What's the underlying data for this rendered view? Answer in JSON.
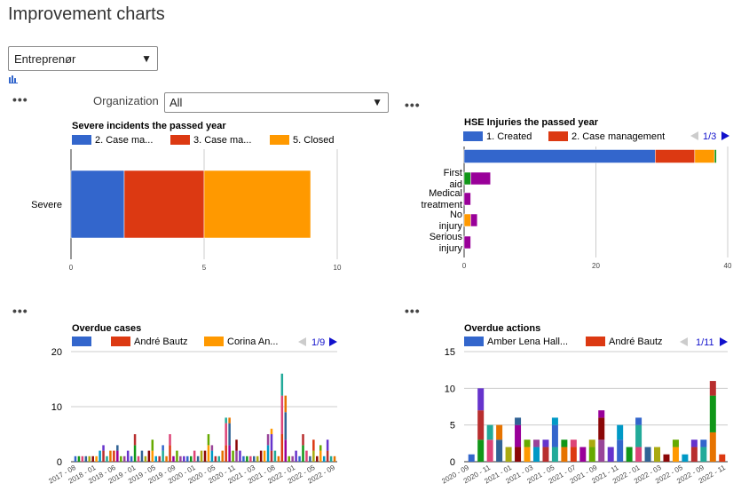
{
  "page": {
    "title": "Improvement charts"
  },
  "company_select": {
    "value": "Entreprenør"
  },
  "org_filter": {
    "label": "Organization",
    "value": "All"
  },
  "colors": {
    "blue": "#3366cc",
    "red": "#dc3912",
    "orange": "#ff9900",
    "green": "#109618",
    "purple": "#990099",
    "teal": "#0099c6",
    "pink": "#dd4477",
    "lime": "#66aa00",
    "darkred": "#b82e2e",
    "navy": "#316395",
    "violet": "#994499",
    "aqua": "#22aa99",
    "olive": "#aaaa11",
    "indigo": "#6633cc",
    "amber": "#e67300",
    "maroon": "#8b0707",
    "grid": "#cccccc",
    "axis": "#333333",
    "nav_arrow": "#1111cc",
    "nav_arrow_disabled": "#cccccc"
  },
  "charts": {
    "severe": {
      "title": "Severe incidents the passed year",
      "legend": [
        "2. Case ma...",
        "3. Case ma...",
        "5. Closed"
      ]
    },
    "hse": {
      "title": "HSE Injuries the passed year",
      "legend": [
        "1. Created",
        "2. Case management"
      ],
      "pager": "1/3"
    },
    "overdue_cases": {
      "title": "Overdue cases",
      "legend": [
        "",
        "André Bautz",
        "Corina An..."
      ],
      "pager": "1/9"
    },
    "overdue_actions": {
      "title": "Overdue actions",
      "legend": [
        "Amber Lena Hall...",
        "André Bautz"
      ],
      "pager": "1/11"
    }
  },
  "chart_data": [
    {
      "type": "bar",
      "orientation": "horizontal",
      "stacked": true,
      "title": "Severe incidents the passed year",
      "categories": [
        "Severe"
      ],
      "series": [
        {
          "name": "2. Case ma...",
          "values": [
            2
          ]
        },
        {
          "name": "3. Case ma...",
          "values": [
            3
          ]
        },
        {
          "name": "5. Closed",
          "values": [
            4
          ]
        }
      ],
      "xlim": [
        0,
        10
      ],
      "xticks": [
        "0",
        "5",
        "10"
      ],
      "legend_position": "top"
    },
    {
      "type": "bar",
      "orientation": "horizontal",
      "stacked": true,
      "title": "HSE Injuries the passed year",
      "categories": [
        "",
        "First aid",
        "Medical treatment",
        "No injury",
        "Serious injury"
      ],
      "series": [
        {
          "name": "1. Created",
          "values": [
            29,
            0,
            0,
            0,
            0
          ]
        },
        {
          "name": "2. Case management",
          "values": [
            6,
            0,
            0,
            0,
            0
          ]
        },
        {
          "values": [
            3,
            0,
            0,
            1,
            0
          ]
        },
        {
          "values": [
            0.3,
            1,
            0,
            0,
            0
          ]
        },
        {
          "values": [
            0,
            3,
            1,
            1,
            1
          ]
        }
      ],
      "xlim": [
        0,
        40
      ],
      "xticks": [
        "0",
        "20",
        "40"
      ],
      "legend_position": "top"
    },
    {
      "type": "bar",
      "stacked": true,
      "title": "Overdue cases",
      "ylim": [
        0,
        20
      ],
      "yticks": [
        "0",
        "10",
        "20"
      ],
      "xticks": [
        "2017 - 08",
        "2018 - 01",
        "2018 - 06",
        "2019 - 01",
        "2019 - 05",
        "2019 - 09",
        "2020 - 01",
        "2020 - 05",
        "2020 - 11",
        "2021 - 03",
        "2021 - 08",
        "2022 - 01",
        "2022 - 05",
        "2022 - 09"
      ],
      "series_legend": [
        "",
        "André Bautz",
        "Corina An..."
      ],
      "totals": [
        1,
        1,
        1,
        1,
        1,
        1,
        1,
        2,
        3,
        1,
        2,
        2,
        3,
        1,
        1,
        2,
        1,
        5,
        1,
        2,
        1,
        2,
        4,
        1,
        1,
        3,
        1,
        5,
        1,
        2,
        1,
        1,
        1,
        1,
        2,
        1,
        2,
        2,
        5,
        3,
        1,
        1,
        2,
        8,
        8,
        2,
        4,
        2,
        1,
        1,
        1,
        1,
        1,
        2,
        2,
        5,
        6,
        2,
        1,
        16,
        12,
        1,
        1,
        2,
        1,
        5,
        2,
        1,
        4,
        1,
        3,
        1,
        4,
        1,
        1
      ],
      "legend_position": "top"
    },
    {
      "type": "bar",
      "stacked": true,
      "title": "Overdue actions",
      "ylim": [
        0,
        15
      ],
      "yticks": [
        "0",
        "5",
        "10",
        "15"
      ],
      "xticks": [
        "2020 - 09",
        "2020 - 11",
        "2021 - 01",
        "2021 - 03",
        "2021 - 05",
        "2021 - 07",
        "2021 - 09",
        "2021 - 11",
        "2022 - 01",
        "2022 - 03",
        "2022 - 05",
        "2022 - 09",
        "2022 - 11"
      ],
      "series_legend": [
        "Amber Lena Hall...",
        "André Bautz"
      ],
      "totals": [
        1,
        10,
        5,
        5,
        2,
        6,
        3,
        3,
        3,
        6,
        3,
        3,
        2,
        3,
        7,
        2,
        5,
        2,
        6,
        2,
        2,
        1,
        3,
        1,
        3,
        3,
        11,
        1
      ],
      "legend_position": "top"
    }
  ]
}
